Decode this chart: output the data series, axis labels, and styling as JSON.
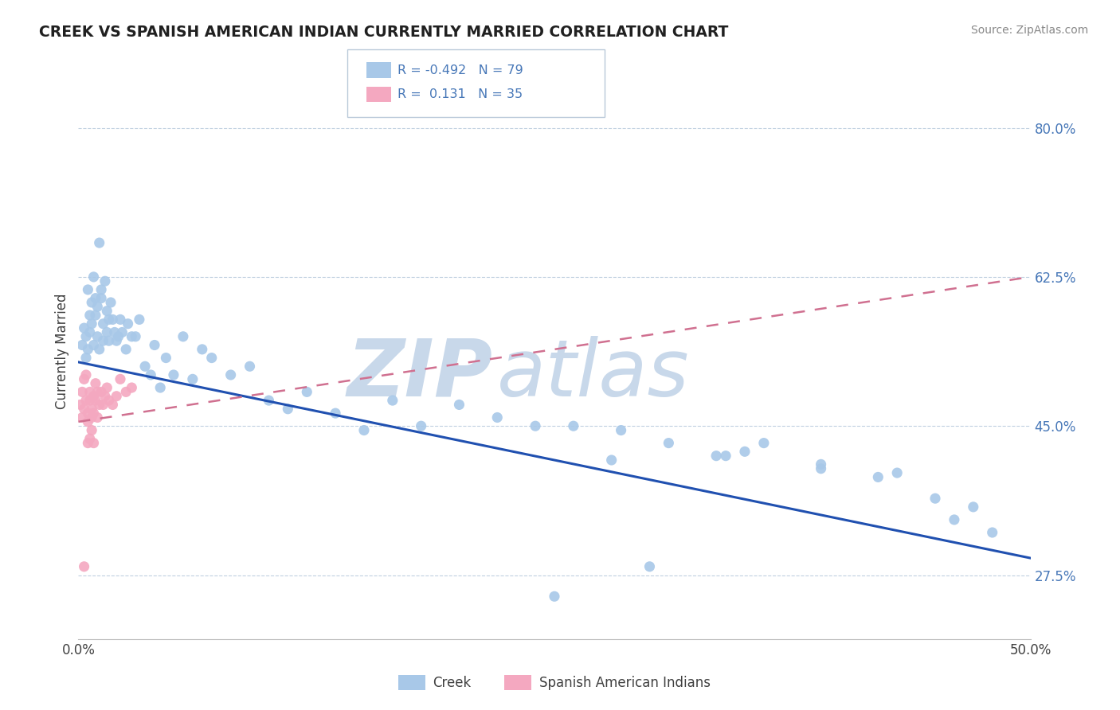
{
  "title": "CREEK VS SPANISH AMERICAN INDIAN CURRENTLY MARRIED CORRELATION CHART",
  "source_text": "Source: ZipAtlas.com",
  "ylabel": "Currently Married",
  "xlim": [
    0.0,
    0.5
  ],
  "ylim": [
    0.2,
    0.875
  ],
  "ytick_vals": [
    0.275,
    0.45,
    0.625,
    0.8
  ],
  "ytick_labels": [
    "27.5%",
    "45.0%",
    "62.5%",
    "80.0%"
  ],
  "xtick_vals": [
    0.0,
    0.5
  ],
  "xtick_labels": [
    "0.0%",
    "50.0%"
  ],
  "creek_R": "-0.492",
  "creek_N": "79",
  "spanish_R": "0.131",
  "spanish_N": "35",
  "creek_color": "#a8c8e8",
  "spanish_color": "#f4a8c0",
  "trend_creek_color": "#2050b0",
  "trend_spanish_color": "#d07090",
  "legend_creek_label": "Creek",
  "legend_spanish_label": "Spanish American Indians",
  "background_color": "#ffffff",
  "grid_color": "#c0d0e0",
  "watermark_zip_color": "#c8d8ea",
  "watermark_atlas_color": "#c8d8ea",
  "title_color": "#202020",
  "source_color": "#888888",
  "tick_color": "#4878b8",
  "creek_x": [
    0.002,
    0.003,
    0.004,
    0.004,
    0.005,
    0.005,
    0.006,
    0.006,
    0.007,
    0.007,
    0.008,
    0.008,
    0.009,
    0.009,
    0.01,
    0.01,
    0.011,
    0.011,
    0.012,
    0.012,
    0.013,
    0.013,
    0.014,
    0.015,
    0.015,
    0.016,
    0.016,
    0.017,
    0.018,
    0.019,
    0.02,
    0.021,
    0.022,
    0.023,
    0.025,
    0.026,
    0.028,
    0.03,
    0.032,
    0.035,
    0.038,
    0.04,
    0.043,
    0.046,
    0.05,
    0.055,
    0.06,
    0.065,
    0.07,
    0.08,
    0.09,
    0.1,
    0.11,
    0.12,
    0.135,
    0.15,
    0.165,
    0.18,
    0.2,
    0.22,
    0.24,
    0.26,
    0.285,
    0.31,
    0.335,
    0.36,
    0.39,
    0.42,
    0.45,
    0.47,
    0.34,
    0.43,
    0.39,
    0.46,
    0.48,
    0.35,
    0.28,
    0.3,
    0.25
  ],
  "creek_y": [
    0.545,
    0.565,
    0.53,
    0.555,
    0.61,
    0.54,
    0.58,
    0.56,
    0.595,
    0.57,
    0.625,
    0.545,
    0.6,
    0.58,
    0.555,
    0.59,
    0.665,
    0.54,
    0.6,
    0.61,
    0.57,
    0.55,
    0.62,
    0.585,
    0.56,
    0.575,
    0.55,
    0.595,
    0.575,
    0.56,
    0.55,
    0.555,
    0.575,
    0.56,
    0.54,
    0.57,
    0.555,
    0.555,
    0.575,
    0.52,
    0.51,
    0.545,
    0.495,
    0.53,
    0.51,
    0.555,
    0.505,
    0.54,
    0.53,
    0.51,
    0.52,
    0.48,
    0.47,
    0.49,
    0.465,
    0.445,
    0.48,
    0.45,
    0.475,
    0.46,
    0.45,
    0.45,
    0.445,
    0.43,
    0.415,
    0.43,
    0.4,
    0.39,
    0.365,
    0.355,
    0.415,
    0.395,
    0.405,
    0.34,
    0.325,
    0.42,
    0.41,
    0.285,
    0.25
  ],
  "spanish_x": [
    0.001,
    0.002,
    0.002,
    0.003,
    0.003,
    0.004,
    0.004,
    0.005,
    0.005,
    0.006,
    0.006,
    0.007,
    0.007,
    0.008,
    0.008,
    0.009,
    0.009,
    0.01,
    0.01,
    0.011,
    0.012,
    0.013,
    0.014,
    0.015,
    0.016,
    0.018,
    0.02,
    0.022,
    0.025,
    0.028,
    0.005,
    0.007,
    0.006,
    0.008,
    0.003
  ],
  "spanish_y": [
    0.475,
    0.49,
    0.46,
    0.505,
    0.47,
    0.48,
    0.51,
    0.455,
    0.465,
    0.49,
    0.48,
    0.46,
    0.47,
    0.485,
    0.465,
    0.48,
    0.5,
    0.49,
    0.46,
    0.475,
    0.49,
    0.475,
    0.485,
    0.495,
    0.48,
    0.475,
    0.485,
    0.505,
    0.49,
    0.495,
    0.43,
    0.445,
    0.435,
    0.43,
    0.285
  ],
  "creek_trend_x0": 0.0,
  "creek_trend_x1": 0.5,
  "creek_trend_y0": 0.525,
  "creek_trend_y1": 0.295,
  "spanish_trend_x0": 0.0,
  "spanish_trend_x1": 0.5,
  "spanish_trend_y0": 0.455,
  "spanish_trend_y1": 0.625
}
